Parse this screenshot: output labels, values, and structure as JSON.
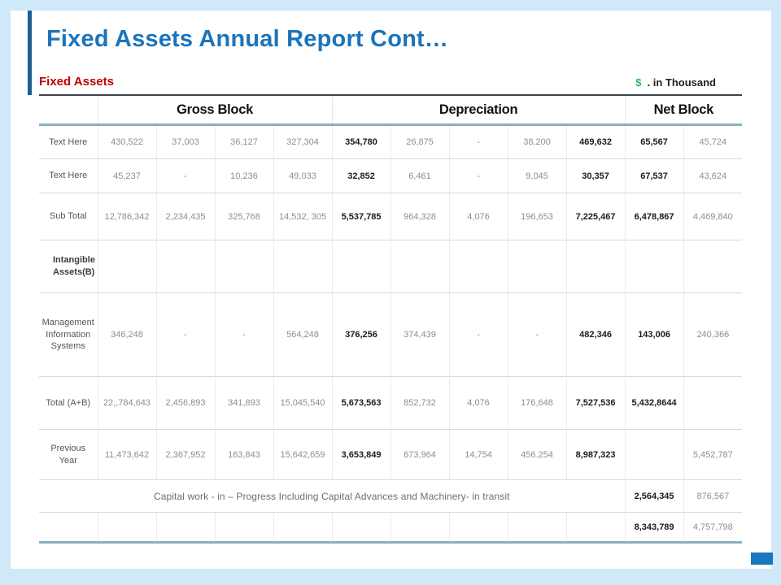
{
  "page": {
    "title": "Fixed Assets Annual Report Cont…",
    "section_label": "Fixed Assets",
    "currency_symbol": "$",
    "currency_note": ". in Thousand"
  },
  "colors": {
    "title_blue": "#1b74bb",
    "accent_bar_blue": "#1e5e90",
    "section_red": "#c00000",
    "dollar_green": "#2eb873",
    "steel_line": "#8caec3",
    "frame_light_blue": "#cfe9f9",
    "corner_rect_blue": "#1878be"
  },
  "table": {
    "group_headers": [
      {
        "label": "Gross Block",
        "span": 4
      },
      {
        "label": "Depreciation",
        "span": 5
      },
      {
        "label": "Net Block",
        "span": 2
      }
    ],
    "bold_columns": [
      4,
      8,
      9
    ],
    "rows": [
      {
        "label": "Text Here",
        "cells": [
          "430,522",
          "37,003",
          "36,127",
          "327,304",
          "354,780",
          "26,875",
          "-",
          "38,200",
          "469,632",
          "65,567",
          "45,724"
        ]
      },
      {
        "label": "Text Here",
        "cells": [
          "45,237",
          "-",
          "10,236",
          "49,033",
          "32,852",
          "6,461",
          "-",
          "9,045",
          "30,357",
          "67,537",
          "43,624"
        ]
      },
      {
        "label": "Sub Total",
        "cells": [
          "12,786,342",
          "2,234,435",
          "325,768",
          "14,532, 305",
          "5,537,785",
          "964,328",
          "4,076",
          "196,653",
          "7,225,467",
          "6,478,867",
          "4,469,840"
        ]
      },
      {
        "label": "Intangible Assets(B)",
        "section": true,
        "cells": [
          "",
          "",
          "",
          "",
          "",
          "",
          "",
          "",
          "",
          "",
          ""
        ]
      },
      {
        "label": "Management Information Systems",
        "cells": [
          "346,248",
          "-",
          "-",
          "564,248",
          "376,256",
          "374,439",
          "-",
          "-",
          "482,346",
          "143,006",
          "240,366"
        ]
      },
      {
        "label": "Total (A+B)",
        "cells": [
          "22,,784,643",
          "2,456,893",
          "341,893",
          "15,045,540",
          "5,673,563",
          "852,732",
          "4,076",
          "176,648",
          "7,527,536",
          "5,432,8644",
          ""
        ]
      },
      {
        "label": "Previous Year",
        "cells": [
          "11,473,642",
          "2,367,952",
          "163,843",
          "15,642,659",
          "3,653,849",
          "673,964",
          "14,754",
          "456.254",
          "8,987,323",
          "",
          "5,452,787"
        ]
      },
      {
        "merged_text": "Capital work - in – Progress Including Capital Advances and Machinery- in transit",
        "cells": [
          "2,564,345",
          "876,567"
        ]
      },
      {
        "label": "",
        "cells": [
          "",
          "",
          "",
          "",
          "",
          "",
          "",
          "",
          "",
          "8,343,789",
          "4,757,798"
        ]
      }
    ]
  }
}
